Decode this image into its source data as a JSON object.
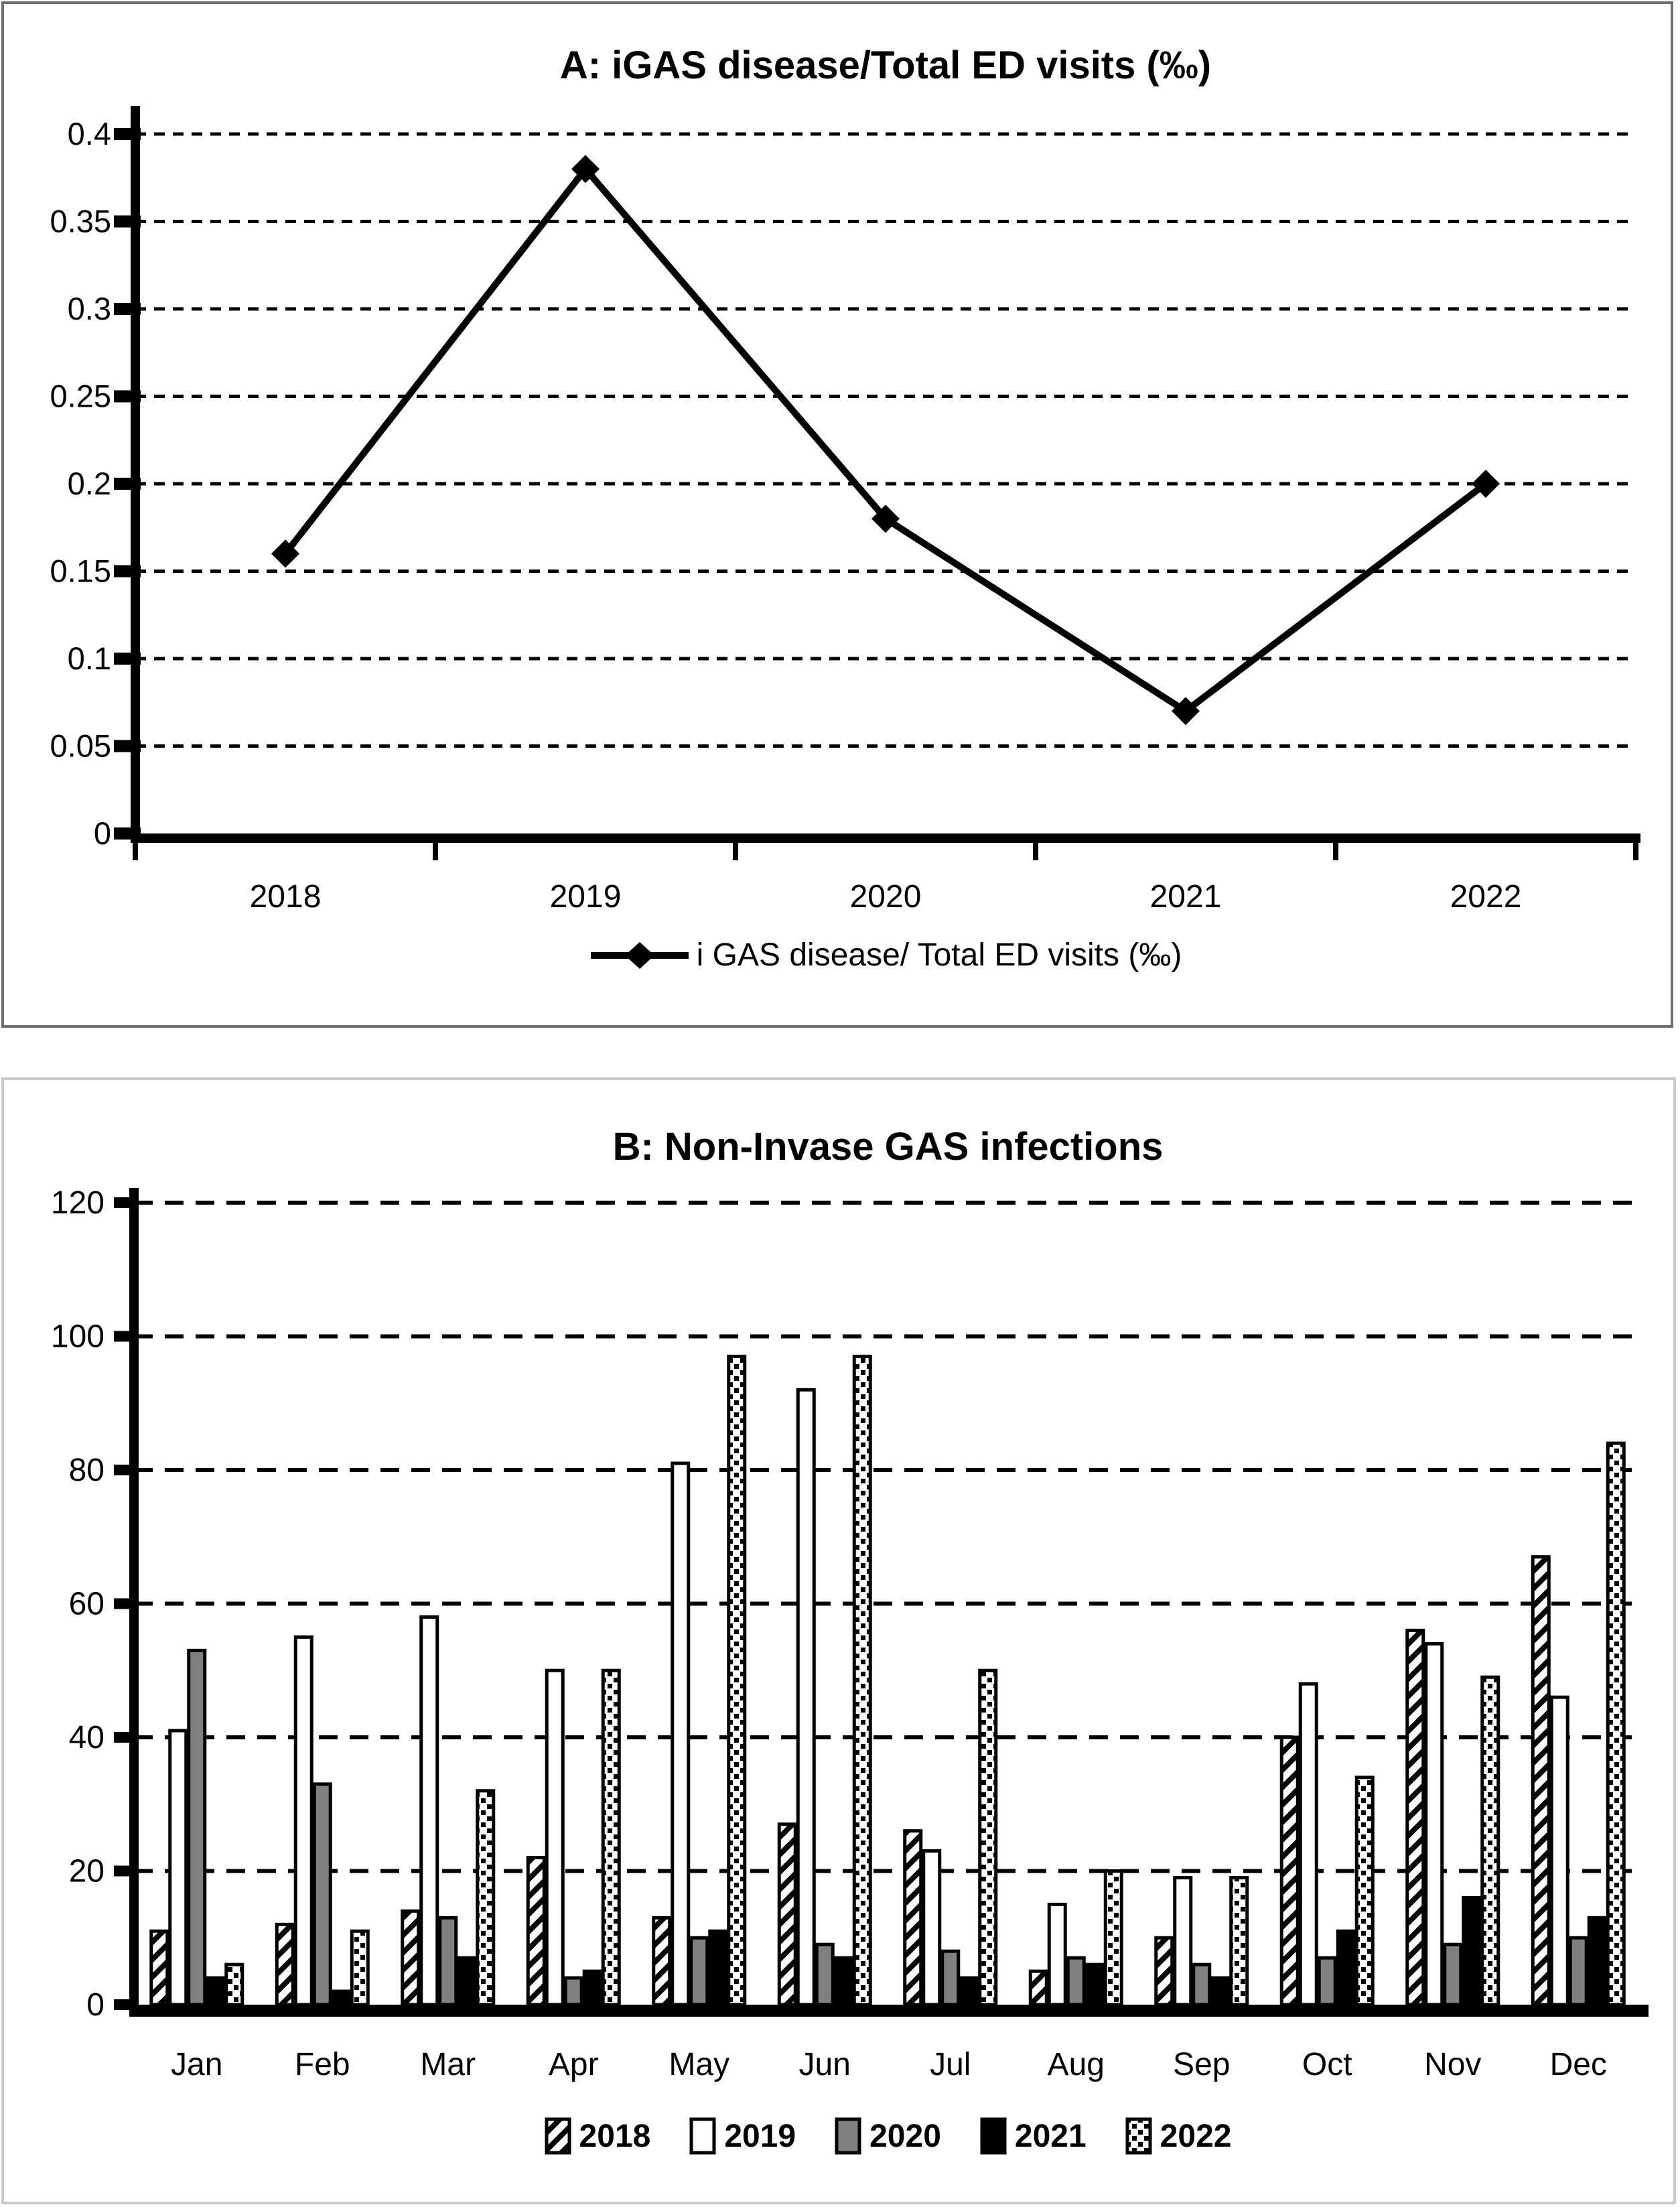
{
  "panel_a": {
    "border_color": "#6e6e6e"
  },
  "panel_b": {
    "border_color": "#c9c9c9"
  },
  "chart_data": [
    {
      "type": "line",
      "title": "A: iGAS disease/Total ED visits (‰)",
      "x": [
        "2018",
        "2019",
        "2020",
        "2021",
        "2022"
      ],
      "values": [
        0.16,
        0.38,
        0.18,
        0.07,
        0.2
      ],
      "ylim": [
        0,
        0.4
      ],
      "yticks": [
        0,
        0.05,
        0.1,
        0.15,
        0.2,
        0.25,
        0.3,
        0.35,
        0.4
      ],
      "grid": "dashed-horizontal",
      "marker": "diamond",
      "line_color": "#000000",
      "legend": [
        "i GAS disease/ Total ED visits (‰)"
      ],
      "legend_position": "bottom"
    },
    {
      "type": "bar",
      "title": "B: Non-Invase GAS infections",
      "categories": [
        "Jan",
        "Feb",
        "Mar",
        "Apr",
        "May",
        "Jun",
        "Jul",
        "Aug",
        "Sep",
        "Oct",
        "Nov",
        "Dec"
      ],
      "series": [
        {
          "name": "2018",
          "pattern": "diagonal-hatch",
          "values": [
            11,
            12,
            14,
            22,
            13,
            27,
            26,
            5,
            10,
            40,
            56,
            67
          ]
        },
        {
          "name": "2019",
          "pattern": "white",
          "values": [
            41,
            55,
            58,
            50,
            81,
            92,
            23,
            15,
            19,
            48,
            54,
            46
          ]
        },
        {
          "name": "2020",
          "pattern": "gray",
          "values": [
            53,
            33,
            13,
            4,
            10,
            9,
            8,
            7,
            6,
            7,
            9,
            10
          ]
        },
        {
          "name": "2021",
          "pattern": "black",
          "values": [
            4,
            2,
            7,
            5,
            11,
            7,
            4,
            6,
            4,
            11,
            16,
            13
          ]
        },
        {
          "name": "2022",
          "pattern": "dotted",
          "values": [
            6,
            11,
            32,
            50,
            97,
            97,
            50,
            20,
            19,
            34,
            49,
            84
          ]
        }
      ],
      "ylim": [
        0,
        120
      ],
      "yticks": [
        0,
        20,
        40,
        60,
        80,
        100,
        120
      ],
      "grid": "dashed-horizontal",
      "legend_position": "bottom",
      "colors": {
        "gray": "#808080",
        "black": "#000000",
        "white": "#ffffff",
        "outline": "#000000"
      }
    }
  ]
}
